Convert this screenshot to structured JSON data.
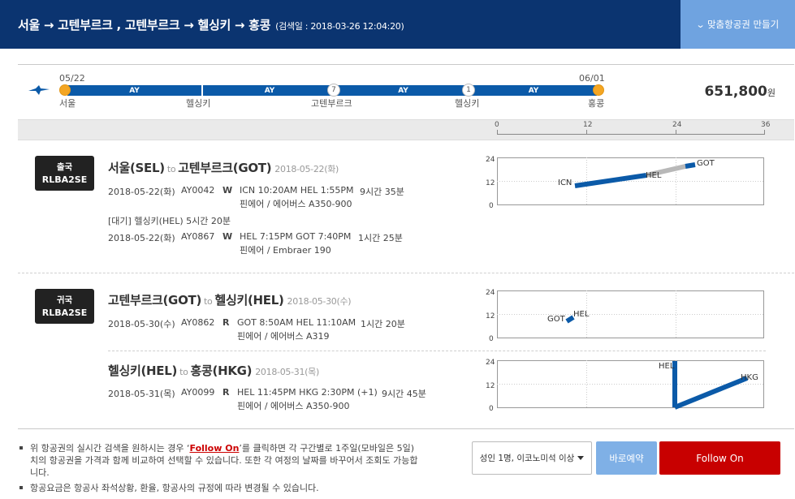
{
  "header": {
    "title": "서울 → 고텐부르크 , 고텐부르크 → 헬싱키 → 홍콩",
    "search_date": "(검색일 : 2018-03-26 12:04:20)",
    "custom_ticket_button": "맞춤항공권 만들기"
  },
  "route_bar": {
    "start_date": "05/22",
    "end_date": "06/01",
    "segments": [
      "AY",
      "AY",
      "AY",
      "AY"
    ],
    "stay_days": [
      "7",
      "1"
    ],
    "cities": [
      "서울",
      "헬싱키",
      "고텐부르크",
      "헬싱키",
      "홍콩"
    ],
    "price": "651,800",
    "currency": "원"
  },
  "timeline_axis": {
    "ticks": [
      "0",
      "12",
      "24",
      "36"
    ]
  },
  "outbound": {
    "badge_type": "출국",
    "badge_code": "RLBA2SE",
    "route_from": "서울(SEL)",
    "to_word": "to",
    "route_to": "고텐부르크(GOT)",
    "route_date": "2018-05-22(화)",
    "flights": [
      {
        "date": "2018-05-22(화)",
        "flight_no": "AY0042",
        "class": "W",
        "schedule": "ICN 10:20AM HEL 1:55PM",
        "duration": "9시간 35분",
        "airline": "핀에어 / 에어버스 A350-900"
      },
      {
        "date": "2018-05-22(화)",
        "flight_no": "AY0867",
        "class": "W",
        "schedule": "HEL 7:15PM GOT 7:40PM",
        "duration": "1시간 25분",
        "airline": "핀에어 / Embraer 190"
      }
    ],
    "layover": "[대기] 헬싱키(HEL)   5시간 20분"
  },
  "return": {
    "badge_type": "귀국",
    "badge_code": "RLBA2SE",
    "legs": [
      {
        "route_from": "고텐부르크(GOT)",
        "to_word": "to",
        "route_to": "헬싱키(HEL)",
        "route_date": "2018-05-30(수)",
        "date": "2018-05-30(수)",
        "flight_no": "AY0862",
        "class": "R",
        "schedule": "GOT 8:50AM HEL 11:10AM",
        "duration": "1시간 20분",
        "airline": "핀에어 / 에어버스 A319"
      },
      {
        "route_from": "헬싱키(HEL)",
        "to_word": "to",
        "route_to": "홍콩(HKG)",
        "route_date": "2018-05-31(목)",
        "date": "2018-05-31(목)",
        "flight_no": "AY0099",
        "class": "R",
        "schedule": "HEL 11:45PM HKG 2:30PM (+1)",
        "duration": "9시간 45분",
        "airline": "핀에어 / 에어버스 A350-900"
      }
    ]
  },
  "mini_charts": {
    "y_ticks": [
      "24",
      "12",
      "0"
    ],
    "outbound_labels": [
      "ICN",
      "HEL",
      "GOT"
    ],
    "return1_labels": [
      "GOT",
      "HEL"
    ],
    "return2_labels": [
      "HEL",
      "HKG"
    ]
  },
  "footer": {
    "note1_before": "위 항공권의 실시간 검색을 원하시는 경우 ‘",
    "note1_link": "Follow On",
    "note1_after": "’를 클릭하면 각 구간별로 1주일(모바일은 5일)치의 항공권을 가격과 함께 비교하여 선택할 수 있습니다. 또한 각 여정의 날짜를 바꾸어서 조회도 가능합니다.",
    "note2": "항공요금은 항공사 좌석상황, 환율, 항공사의 규정에 따라 변경될 수 있습니다.",
    "passenger_select": "성인 1명, 이코노미석 이상",
    "book_button": "바로예약",
    "follow_button": "Follow On"
  },
  "colors": {
    "header_bg": "#0b3470",
    "segment": "#0b5aa8",
    "stop_dot": "#f4a623",
    "follow_button": "#c80000",
    "book_button": "#7fb0e6"
  }
}
